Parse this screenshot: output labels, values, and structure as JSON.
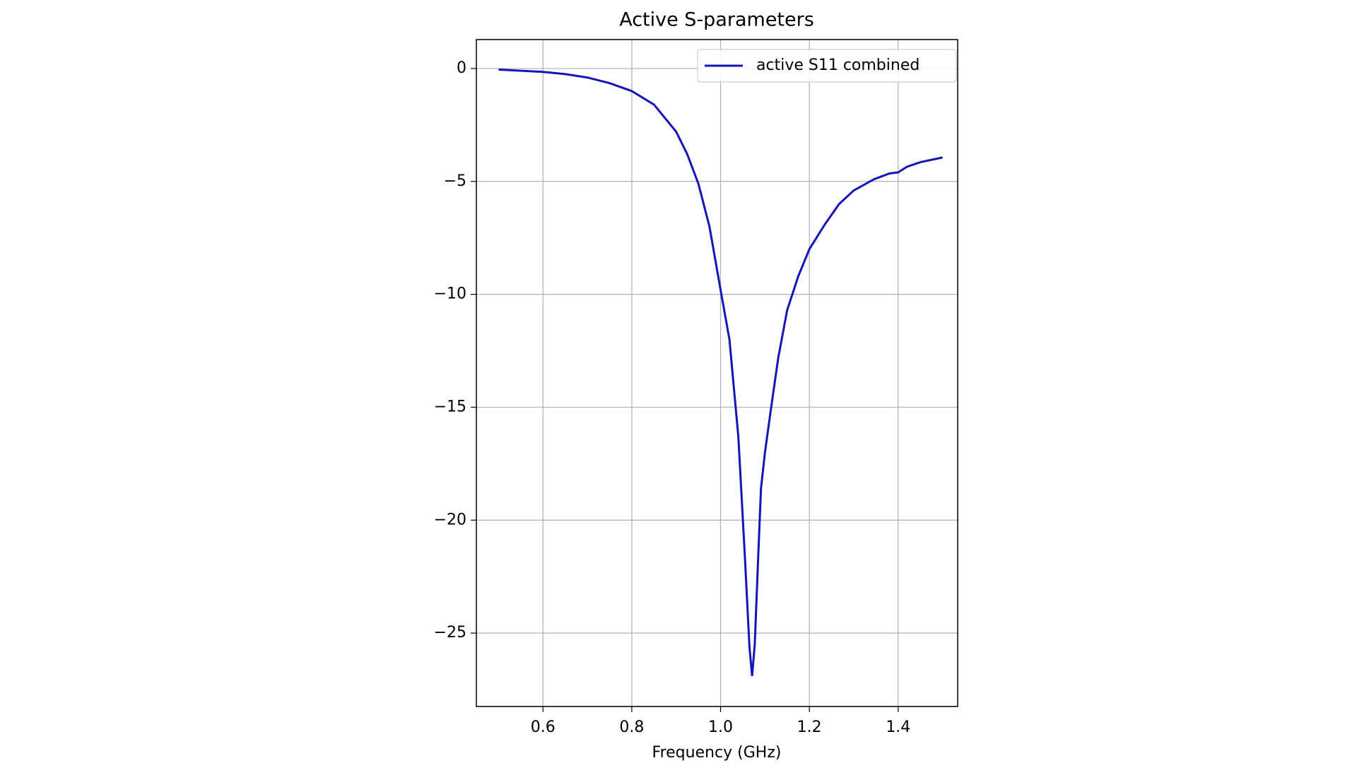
{
  "chart_data": {
    "type": "line",
    "title": "Active S-parameters",
    "x_label": "Frequency (GHz)",
    "x": [
      0.5,
      0.55,
      0.6,
      0.65,
      0.7,
      0.75,
      0.8,
      0.85,
      0.9,
      0.925,
      0.95,
      0.975,
      1.0,
      1.02,
      1.04,
      1.055,
      1.065,
      1.071,
      1.077,
      1.085,
      1.091,
      1.1,
      1.114,
      1.13,
      1.15,
      1.175,
      1.2,
      1.235,
      1.267,
      1.3,
      1.346,
      1.38,
      1.4,
      1.42,
      1.45,
      1.5
    ],
    "series": [
      {
        "name": "active S11 combined",
        "color": "#1414b8",
        "values": [
          -0.05,
          -0.1,
          -0.15,
          -0.25,
          -0.4,
          -0.65,
          -1.0,
          -1.6,
          -2.8,
          -3.8,
          -5.1,
          -7.0,
          -9.8,
          -12.0,
          -16.3,
          -21.7,
          -25.6,
          -26.9,
          -25.5,
          -21.5,
          -18.6,
          -17.0,
          -15.0,
          -12.8,
          -10.7,
          -9.2,
          -8.0,
          -6.9,
          -6.0,
          -5.4,
          -4.9,
          -4.65,
          -4.6,
          -4.35,
          -4.15,
          -3.94
        ]
      }
    ],
    "xlim": [
      0.45,
      1.534
    ],
    "ylim": [
      -28.25,
      1.28
    ],
    "xticks": [
      0.6,
      0.8,
      {
        "value": 1.0,
        "label": "1.0"
      },
      1.2,
      1.4
    ],
    "yticks": [
      0,
      {
        "value": -5,
        "label": "−5"
      },
      {
        "value": -10,
        "label": "−10"
      },
      {
        "value": -15,
        "label": "−15"
      },
      {
        "value": -20,
        "label": "−20"
      },
      {
        "value": -25,
        "label": "−25"
      }
    ],
    "grid": true,
    "legend": "upper right"
  }
}
